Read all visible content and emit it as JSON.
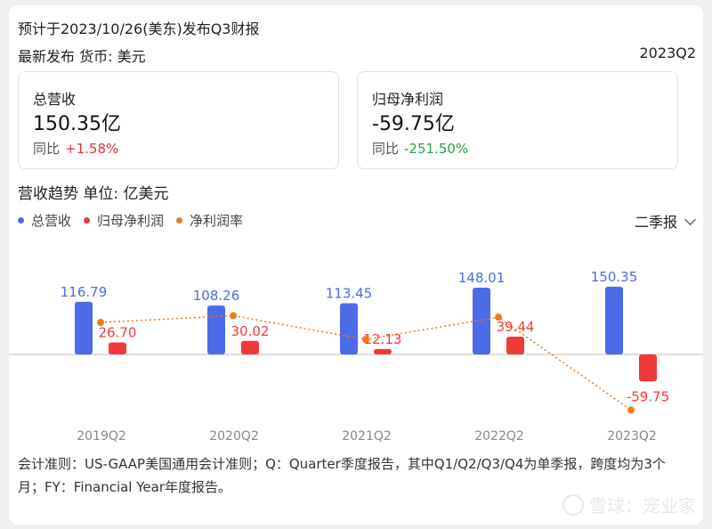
{
  "header": {
    "forecast": "预计于2023/10/26(美东)发布Q3财报",
    "latest": "最新发布  货币: 美元",
    "period": "2023Q2"
  },
  "metrics": [
    {
      "label": "总营收",
      "value": "150.35亿",
      "yoy_label": "同比",
      "yoy": "+1.58%"
    },
    {
      "label": "归母净利润",
      "value": "-59.75亿",
      "yoy_label": "同比",
      "yoy": "-251.50%"
    }
  ],
  "trend": {
    "title": "营收趋势  单位: 亿美元",
    "selector": "二季报"
  },
  "legend": [
    {
      "label": "总营收",
      "color": "#4d6ae8"
    },
    {
      "label": "归母净利润",
      "color": "#f03a3a"
    },
    {
      "label": "净利润率",
      "color": "#f07a1a"
    }
  ],
  "chart_data": {
    "type": "bar",
    "categories": [
      "2019Q2",
      "2020Q2",
      "2021Q2",
      "2022Q2",
      "2023Q2"
    ],
    "series": [
      {
        "name": "总营收",
        "values": [
          116.79,
          108.26,
          113.45,
          148.01,
          150.35
        ],
        "labels": [
          "116.79",
          "108.26",
          "113.45",
          "148.01",
          "150.35"
        ],
        "color": "#4d6ae8"
      },
      {
        "name": "归母净利润",
        "values": [
          26.7,
          30.02,
          12.13,
          39.44,
          -59.75
        ],
        "labels": [
          "26.70",
          "30.02",
          "12.13",
          "39.44",
          "-59.75"
        ],
        "color": "#f03a3a"
      },
      {
        "name": "净利润率",
        "type": "line",
        "values": [
          22.9,
          27.7,
          10.7,
          26.6,
          -39.7
        ],
        "color": "#f07a1a"
      }
    ]
  },
  "footnote": "会计准则：US-GAAP美国通用会计准则；Q：Quarter季度报告，其中Q1/Q2/Q3/Q4为单季报，跨度均为3个月；FY：Financial Year年度报告。",
  "watermark": "雪球：宠业家"
}
